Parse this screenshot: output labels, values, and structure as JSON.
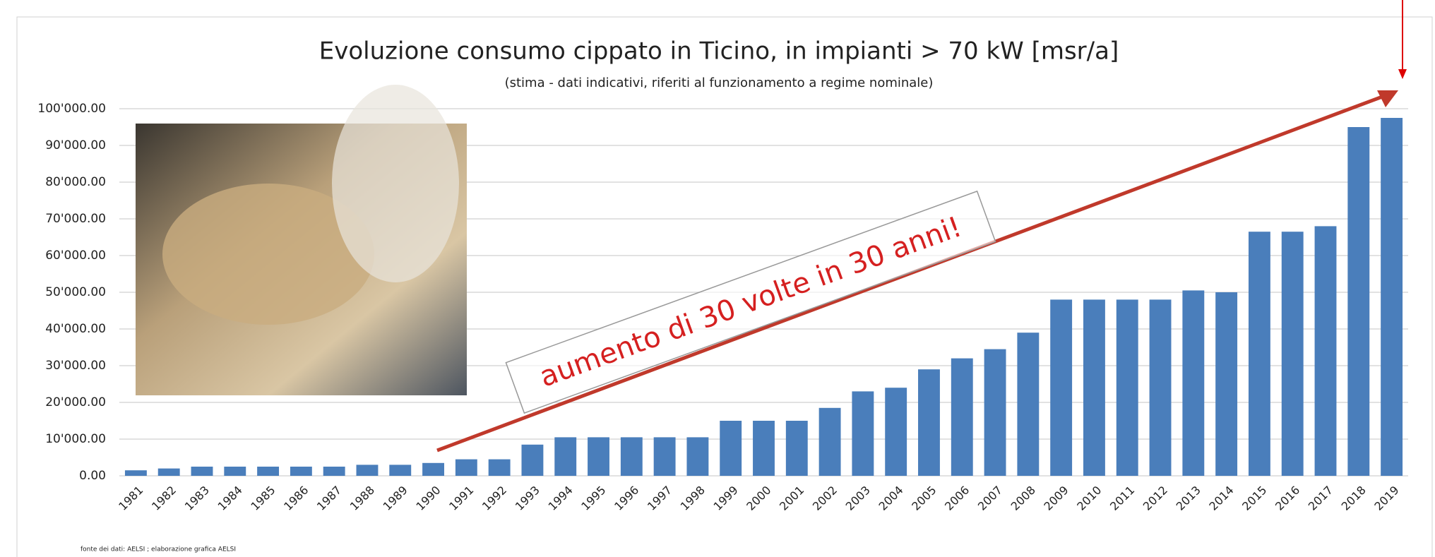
{
  "chart_data": {
    "type": "bar",
    "title": "Evoluzione consumo cippato in Ticino, in impianti > 70 kW [msr/a]",
    "subtitle": "(stima - dati indicativi, riferiti al funzionamento a regime nominale)",
    "annotation": "aumento di 30 volte in 30 anni!",
    "source": "fonte dei dati: AELSI ; elaborazione grafica AELSI",
    "categories": [
      "1981",
      "1982",
      "1983",
      "1984",
      "1985",
      "1986",
      "1987",
      "1988",
      "1989",
      "1990",
      "1991",
      "1992",
      "1993",
      "1994",
      "1995",
      "1996",
      "1997",
      "1998",
      "1999",
      "2000",
      "2001",
      "2002",
      "2003",
      "2004",
      "2005",
      "2006",
      "2007",
      "2008",
      "2009",
      "2010",
      "2011",
      "2012",
      "2013",
      "2014",
      "2015",
      "2016",
      "2017",
      "2018",
      "2019"
    ],
    "values": [
      1500,
      2000,
      2500,
      2500,
      2500,
      2500,
      2500,
      3000,
      3000,
      3500,
      4500,
      4500,
      8500,
      10500,
      10500,
      10500,
      10500,
      10500,
      15000,
      15000,
      15000,
      18500,
      23000,
      24000,
      29000,
      32000,
      34500,
      39000,
      48000,
      48000,
      48000,
      48000,
      50500,
      50000,
      66500,
      66500,
      68000,
      95000,
      97500
    ],
    "color": "#4a7ebb",
    "ylim": [
      0,
      100000
    ],
    "yticks": [
      {
        "value": 0,
        "label": "0.00"
      },
      {
        "value": 10000,
        "label": "10'000.00"
      },
      {
        "value": 20000,
        "label": "20'000.00"
      },
      {
        "value": 30000,
        "label": "30'000.00"
      },
      {
        "value": 40000,
        "label": "40'000.00"
      },
      {
        "value": 50000,
        "label": "50'000.00"
      },
      {
        "value": 60000,
        "label": "60'000.00"
      },
      {
        "value": 70000,
        "label": "70'000.00"
      },
      {
        "value": 80000,
        "label": "80'000.00"
      },
      {
        "value": 90000,
        "label": "90'000.00"
      },
      {
        "value": 100000,
        "label": "100'000.00"
      }
    ],
    "grid": true
  }
}
